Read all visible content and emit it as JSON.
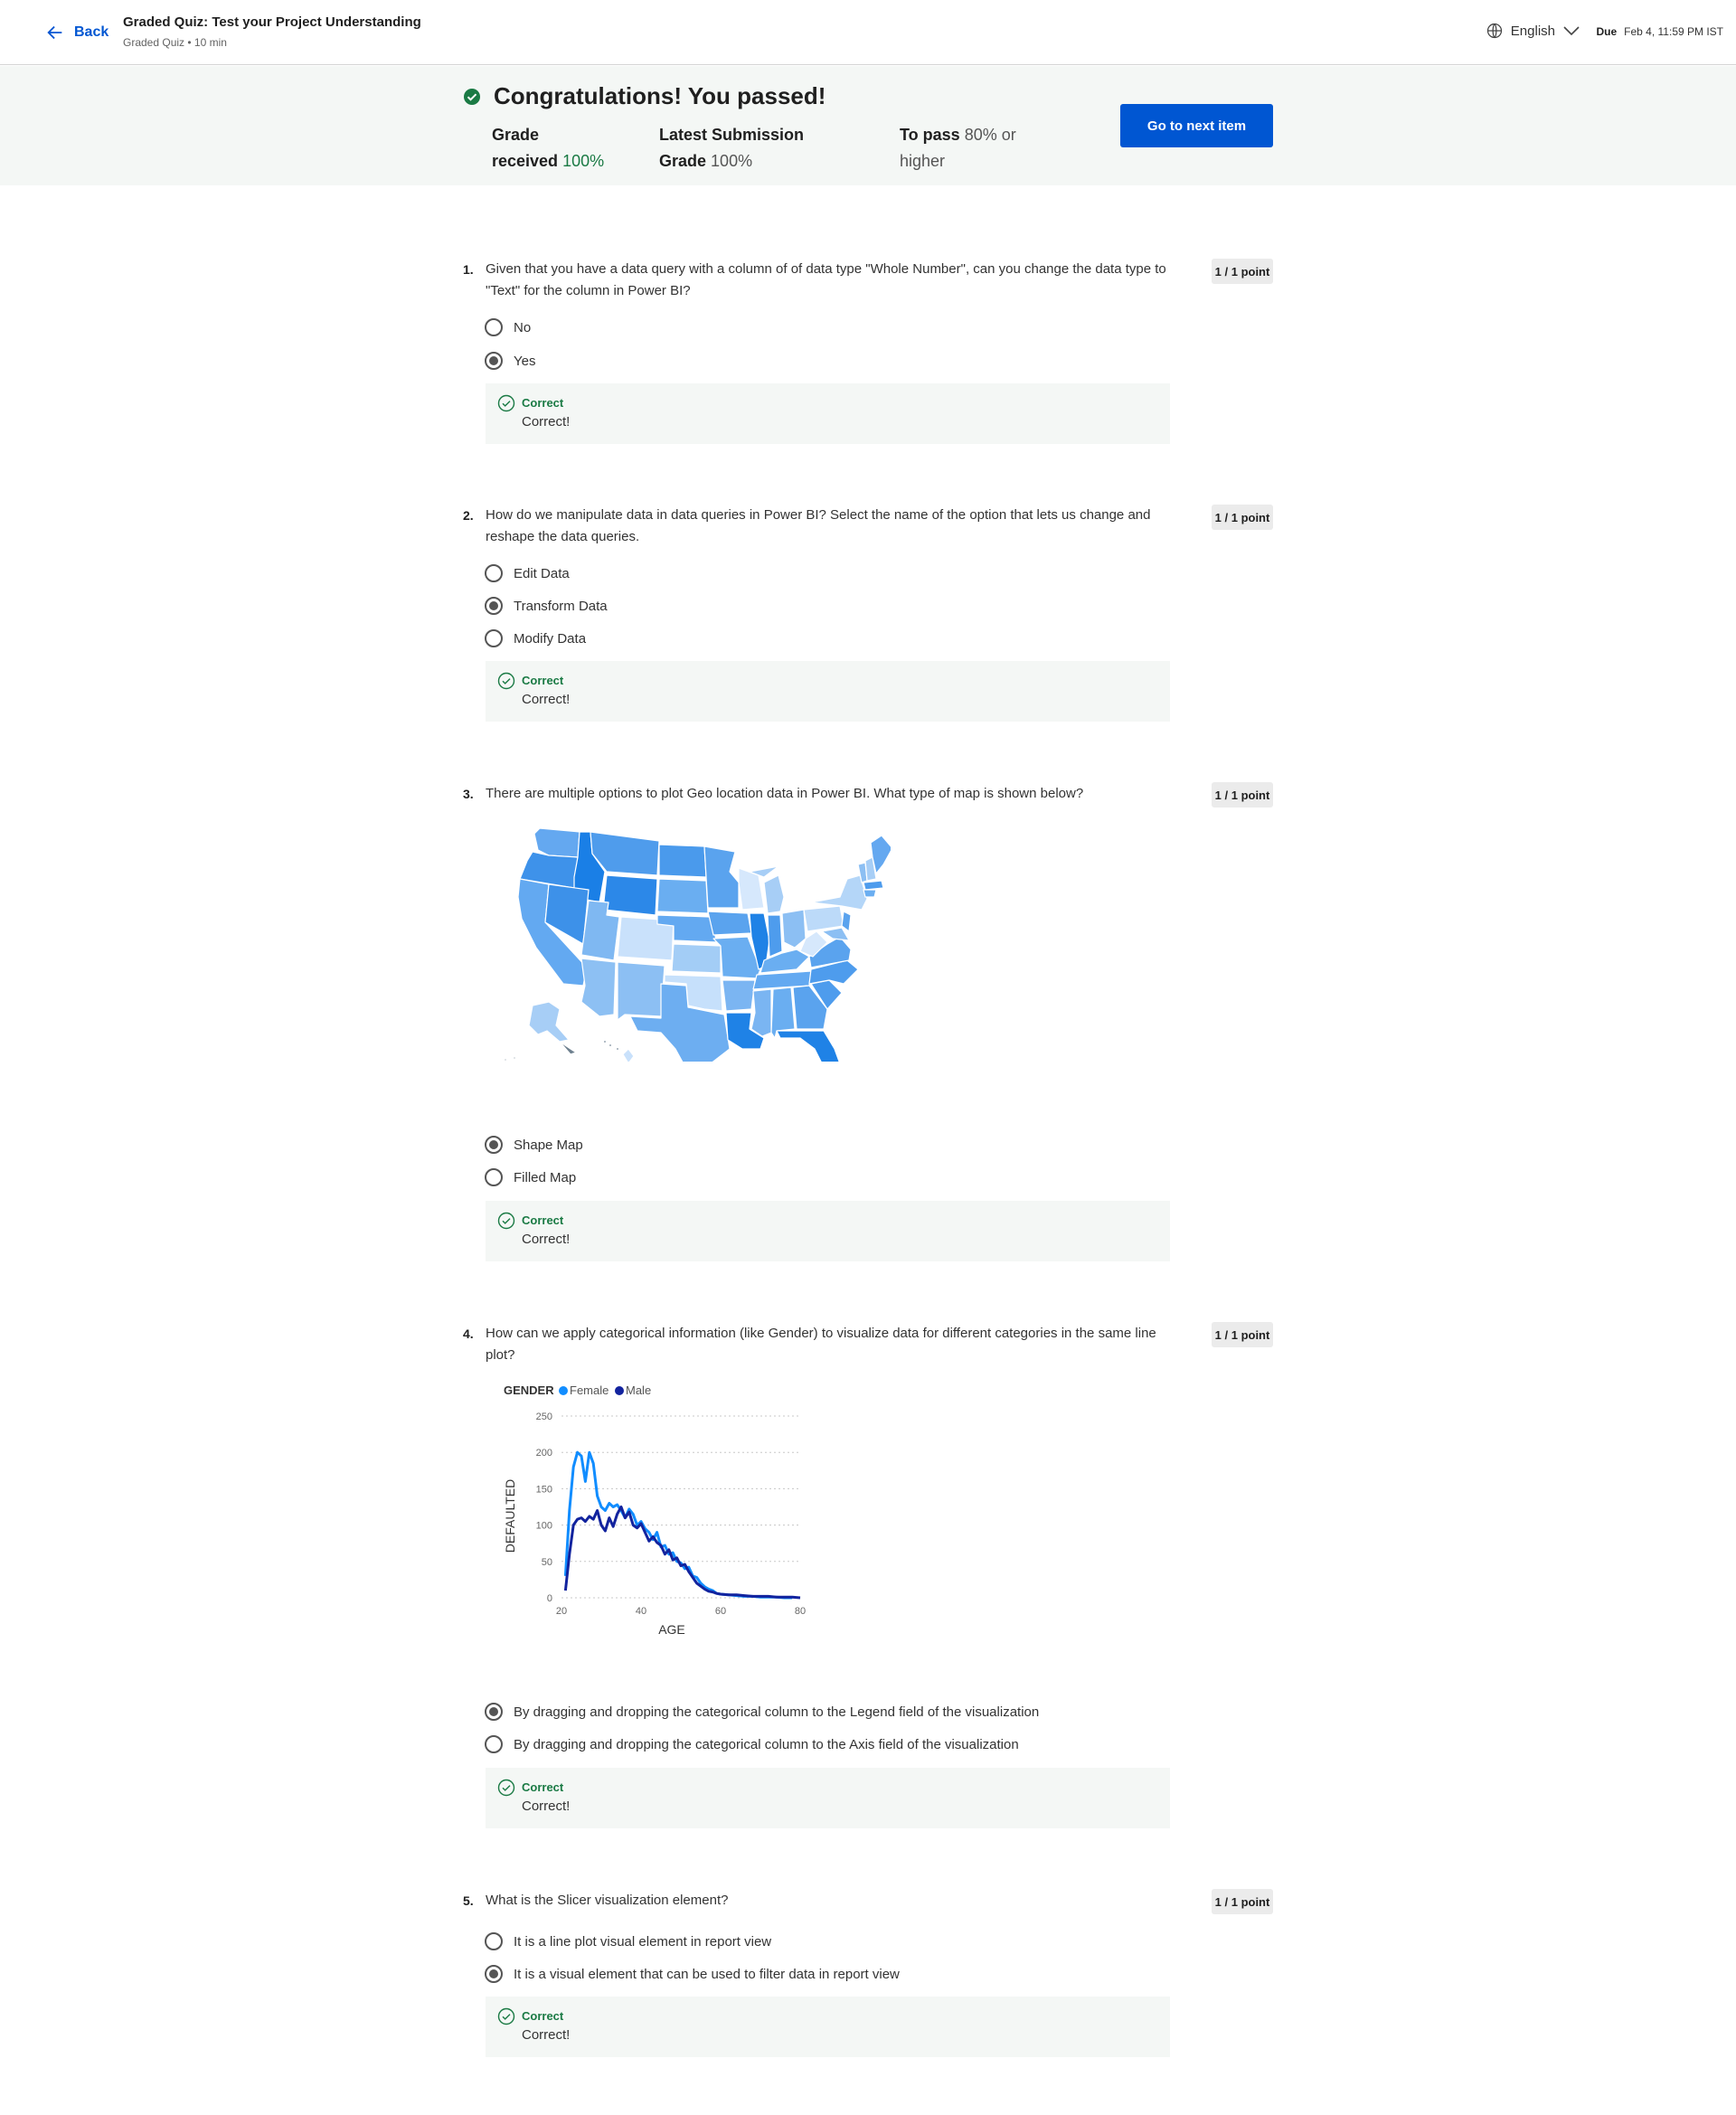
{
  "header": {
    "back_label": "Back",
    "quiz_title": "Graded Quiz: Test your Project Understanding",
    "quiz_subtitle": "Graded Quiz • 10 min",
    "language": "English",
    "due_label": "Due",
    "due_value": "Feb 4, 11:59 PM IST"
  },
  "banner": {
    "title": "Congratulations! You passed!",
    "grade_label_1": "Grade",
    "grade_label_2": "received",
    "grade_value": "100%",
    "latest_label_1": "Latest Submission",
    "latest_label_2": "Grade",
    "latest_value": "100%",
    "pass_label": "To pass",
    "pass_value_1": "80% or",
    "pass_value_2": "higher",
    "next_button": "Go to next item"
  },
  "colors": {
    "accent": "#0056d2",
    "success": "#1a7a44",
    "banner_bg": "#f4f7f5"
  },
  "questions": [
    {
      "number": "1.",
      "text_line1": "Given that you have a data query with a column of of data type \"Whole Number\", can you change the data type to",
      "text_line2": "\"Text\" for the column in Power BI?",
      "points": "1 / 1 point",
      "options": [
        {
          "label": "No",
          "selected": false
        },
        {
          "label": "Yes",
          "selected": true
        }
      ],
      "feedback_label": "Correct",
      "feedback_text": "Correct!"
    },
    {
      "number": "2.",
      "text_line1": "How do we manipulate data in data queries in Power BI? Select the name of the option that lets us change and",
      "text_line2": "reshape the data queries.",
      "points": "1 / 1 point",
      "options": [
        {
          "label": "Edit Data",
          "selected": false
        },
        {
          "label": "Transform Data",
          "selected": true
        },
        {
          "label": "Modify Data",
          "selected": false
        }
      ],
      "feedback_label": "Correct",
      "feedback_text": "Correct!"
    },
    {
      "number": "3.",
      "text_line1": "There are multiple options to plot Geo location data in Power BI. What type of map is shown below?",
      "points": "1 / 1 point",
      "options": [
        {
          "label": "Shape Map",
          "selected": true
        },
        {
          "label": "Filled Map",
          "selected": false
        }
      ],
      "feedback_label": "Correct",
      "feedback_text": "Correct!"
    },
    {
      "number": "4.",
      "text_line1": "How can we apply categorical information (like Gender) to visualize data for different categories in the same line",
      "text_line2": "plot?",
      "points": "1 / 1 point",
      "options": [
        {
          "label": "By dragging and dropping the categorical column to the Legend field of the visualization",
          "selected": true
        },
        {
          "label": "By dragging and dropping the categorical column to the Axis field of the visualization",
          "selected": false
        }
      ],
      "feedback_label": "Correct",
      "feedback_text": "Correct!"
    },
    {
      "number": "5.",
      "text_line1": "What is the Slicer visualization element?",
      "points": "1 / 1 point",
      "options": [
        {
          "label": "It is a line plot visual element in report view",
          "selected": false
        },
        {
          "label": "It is a visual element that can be used to filter data in report view",
          "selected": true
        }
      ],
      "feedback_label": "Correct",
      "feedback_text": "Correct!"
    }
  ],
  "chart_data": {
    "type": "line",
    "legend_title": "GENDER",
    "legend_position": "top-left",
    "xlabel": "AGE",
    "ylabel": "DEFAULTED",
    "xlim": [
      20,
      80
    ],
    "ylim": [
      0,
      250
    ],
    "x_ticks": [
      20,
      40,
      60,
      80
    ],
    "y_ticks": [
      0,
      50,
      100,
      150,
      200,
      250
    ],
    "grid": true,
    "series": [
      {
        "name": "Female",
        "color": "#118dff",
        "x": [
          21,
          22,
          23,
          24,
          25,
          26,
          27,
          28,
          29,
          30,
          31,
          32,
          33,
          34,
          35,
          36,
          37,
          38,
          39,
          40,
          41,
          42,
          43,
          44,
          45,
          46,
          47,
          48,
          49,
          50,
          51,
          52,
          53,
          54,
          55,
          56,
          57,
          58,
          59,
          60,
          62,
          64,
          66,
          68,
          70,
          72,
          74,
          76,
          78
        ],
        "values": [
          30,
          120,
          180,
          200,
          195,
          160,
          200,
          185,
          140,
          125,
          120,
          130,
          125,
          128,
          120,
          110,
          122,
          115,
          100,
          105,
          95,
          90,
          80,
          90,
          70,
          72,
          60,
          62,
          50,
          48,
          40,
          42,
          30,
          28,
          20,
          15,
          12,
          10,
          6,
          5,
          4,
          3,
          2,
          2,
          1,
          1,
          1,
          0,
          0
        ]
      },
      {
        "name": "Male",
        "color": "#12239e",
        "x": [
          21,
          22,
          23,
          24,
          25,
          26,
          27,
          28,
          29,
          30,
          31,
          32,
          33,
          34,
          35,
          36,
          37,
          38,
          39,
          40,
          41,
          42,
          43,
          44,
          45,
          46,
          47,
          48,
          49,
          50,
          51,
          52,
          53,
          54,
          55,
          56,
          57,
          58,
          59,
          60,
          62,
          64,
          66,
          68,
          70,
          72,
          74,
          76,
          78,
          80
        ],
        "values": [
          10,
          60,
          100,
          108,
          110,
          105,
          112,
          108,
          120,
          100,
          92,
          110,
          98,
          115,
          125,
          110,
          118,
          100,
          96,
          102,
          90,
          78,
          84,
          76,
          72,
          60,
          66,
          52,
          55,
          44,
          46,
          36,
          28,
          20,
          16,
          12,
          9,
          8,
          6,
          5,
          4,
          4,
          3,
          2,
          2,
          2,
          1,
          1,
          1,
          0
        ]
      }
    ]
  }
}
